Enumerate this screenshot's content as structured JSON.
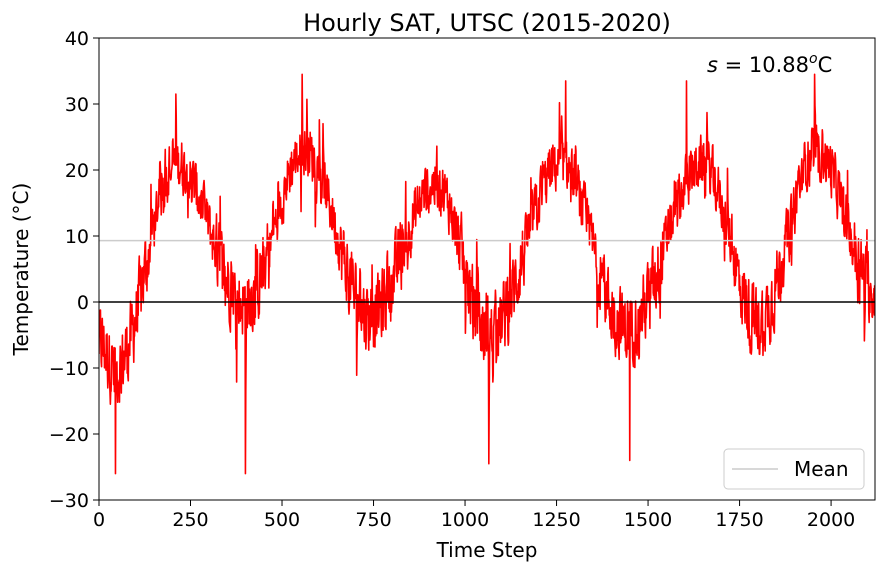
{
  "chart_data": {
    "type": "line",
    "title": "Hourly SAT, UTSC (2015-2020)",
    "xlabel": "Time Step",
    "ylabel": "Temperature (°C)",
    "xlim": [
      0,
      2120
    ],
    "ylim": [
      -30,
      40
    ],
    "xticks": [
      0,
      250,
      500,
      750,
      1000,
      1250,
      1500,
      1750,
      2000
    ],
    "yticks": [
      -30,
      -20,
      -10,
      0,
      10,
      20,
      30,
      40
    ],
    "ytick_labels": [
      "−30",
      "−20",
      "−10",
      "0",
      "10",
      "20",
      "30",
      "40"
    ],
    "grid": false,
    "legend": {
      "placement": "bottom-right",
      "entries": [
        "Mean"
      ]
    },
    "annotation": {
      "prefix": "s",
      "equals": " = 10.88",
      "sup": "o",
      "unit": "C"
    },
    "colors": {
      "series": "#ff0000",
      "mean": "#cccccc",
      "zero": "#000000"
    },
    "reference_lines": [
      {
        "name": "Mean",
        "y": 9.3,
        "color": "#cccccc"
      },
      {
        "y": 0,
        "color": "#000000"
      }
    ],
    "series": [
      {
        "color": "#ff0000",
        "n_points": 2120,
        "seasonal_anchors": {
          "x": [
            0,
            45,
            210,
            400,
            560,
            740,
            920,
            1065,
            1260,
            1440,
            1650,
            1800,
            1960,
            2120
          ],
          "y": [
            -6,
            -10,
            21,
            0,
            23,
            -2,
            18,
            -5,
            21,
            -4,
            21,
            -3,
            23,
            2
          ]
        },
        "extremes": {
          "x": [
            45,
            210,
            400,
            555,
            1065,
            1275,
            1450,
            1605,
            1955
          ],
          "y": [
            -26,
            31.5,
            -26,
            34.5,
            -24.5,
            33.5,
            -24,
            33.5,
            34.5
          ]
        }
      }
    ]
  }
}
